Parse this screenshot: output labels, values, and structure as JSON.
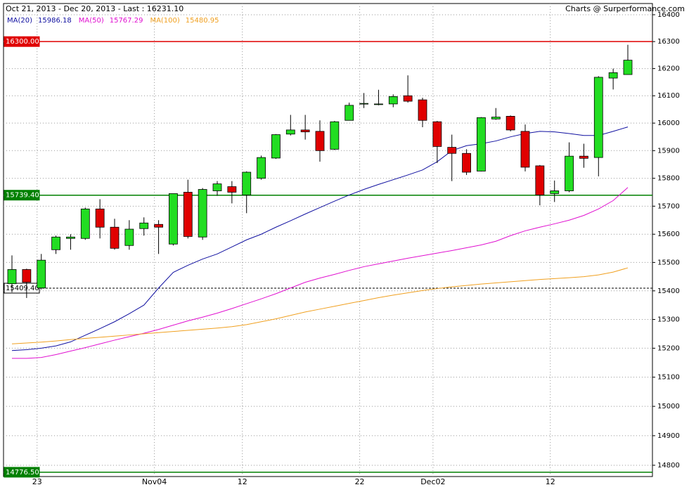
{
  "chart_data": {
    "type": "candlestick",
    "title": "Oct 21, 2013 - Dec 20, 2013 - Last : 16231.10",
    "source": "Charts @ Surperformance.com",
    "log": true,
    "ylim": [
      14762,
      16442
    ],
    "yticks": [
      14800,
      14900,
      15000,
      15100,
      15200,
      15300,
      15400,
      15500,
      15600,
      15700,
      15800,
      15900,
      16000,
      16100,
      16200,
      16300,
      16400
    ],
    "grid": true,
    "up_color": "#22dd22",
    "down_color": "#e00000",
    "categories": [
      null,
      null,
      "23",
      null,
      null,
      null,
      null,
      null,
      null,
      null,
      "Nov04",
      null,
      null,
      null,
      null,
      null,
      "12",
      null,
      null,
      null,
      null,
      null,
      null,
      null,
      "22",
      null,
      null,
      null,
      null,
      "Dec02",
      null,
      null,
      null,
      null,
      null,
      null,
      null,
      "12",
      null,
      null,
      null,
      null,
      null
    ],
    "open": [
      15425,
      15475,
      15410,
      15545,
      15585,
      15585,
      15690,
      15625,
      15560,
      15620,
      15635,
      15565,
      15750,
      15590,
      15755,
      15770,
      15740,
      15800,
      15873,
      15960,
      15975,
      15970,
      15905,
      16010,
      16070,
      16070,
      16070,
      16100,
      16085,
      16005,
      15912,
      15890,
      15826,
      16015,
      16025,
      15970,
      15845,
      15745,
      15755,
      15880,
      15875,
      16165,
      16178
    ],
    "high": [
      15525,
      15478,
      15530,
      15595,
      15600,
      15695,
      15725,
      15655,
      15650,
      15660,
      15650,
      15745,
      15795,
      15765,
      15790,
      15790,
      15825,
      15882,
      15960,
      16030,
      16030,
      16010,
      16008,
      16075,
      16110,
      16122,
      16105,
      16175,
      16093,
      16008,
      15958,
      15905,
      16022,
      16055,
      16028,
      15995,
      15848,
      15792,
      15930,
      15925,
      16172,
      16200,
      16288
    ],
    "low": [
      15395,
      15375,
      15405,
      15530,
      15545,
      15580,
      15585,
      15545,
      15545,
      15595,
      15530,
      15560,
      15585,
      15580,
      15737,
      15710,
      15675,
      15795,
      15870,
      15955,
      15940,
      15860,
      15902,
      16010,
      16055,
      16065,
      16058,
      16075,
      15985,
      15855,
      15790,
      15812,
      15825,
      16012,
      15970,
      15825,
      15703,
      15715,
      15750,
      15838,
      15807,
      16123,
      16178
    ],
    "close": [
      15475,
      15430,
      15508,
      15590,
      15590,
      15690,
      15625,
      15550,
      15618,
      15640,
      15625,
      15745,
      15592,
      15760,
      15780,
      15750,
      15822,
      15875,
      15958,
      15975,
      15968,
      15900,
      16005,
      16065,
      16072,
      16070,
      16097,
      16080,
      16010,
      15915,
      15890,
      15822,
      16020,
      16022,
      15975,
      15840,
      15740,
      15755,
      15880,
      15872,
      16168,
      16185,
      16231.1
    ],
    "series": [
      {
        "name": "MA(20)",
        "color": "#1010a0",
        "last": 15986.18,
        "values": [
          15192,
          15195,
          15200,
          15208,
          15222,
          15245,
          15268,
          15292,
          15320,
          15350,
          15410,
          15465,
          15490,
          15512,
          15530,
          15555,
          15580,
          15600,
          15625,
          15648,
          15672,
          15695,
          15718,
          15740,
          15760,
          15778,
          15795,
          15812,
          15830,
          15860,
          15900,
          15918,
          15925,
          15935,
          15950,
          15962,
          15970,
          15968,
          15962,
          15955,
          15955,
          15970,
          15986
        ]
      },
      {
        "name": "MA(50)",
        "color": "#e010d0",
        "last": 15767.29,
        "values": [
          15165,
          15165,
          15168,
          15178,
          15190,
          15202,
          15215,
          15228,
          15240,
          15252,
          15265,
          15280,
          15295,
          15308,
          15322,
          15338,
          15355,
          15372,
          15390,
          15410,
          15430,
          15445,
          15458,
          15472,
          15485,
          15495,
          15505,
          15515,
          15524,
          15533,
          15542,
          15552,
          15562,
          15575,
          15595,
          15612,
          15625,
          15637,
          15650,
          15667,
          15690,
          15720,
          15767
        ]
      },
      {
        "name": "MA(100)",
        "color": "#f0a020",
        "last": 15480.95,
        "values": [
          15215,
          15218,
          15221,
          15225,
          15230,
          15234,
          15238,
          15242,
          15246,
          15250,
          15254,
          15258,
          15262,
          15266,
          15270,
          15275,
          15282,
          15292,
          15302,
          15314,
          15326,
          15336,
          15346,
          15356,
          15366,
          15376,
          15385,
          15393,
          15401,
          15408,
          15414,
          15419,
          15424,
          15428,
          15432,
          15436,
          15440,
          15443,
          15446,
          15450,
          15456,
          15466,
          15481
        ]
      }
    ],
    "hlines": [
      {
        "value": 16300,
        "label": "16300.00",
        "color": "#e00000",
        "dashed": false
      },
      {
        "value": 15739.4,
        "label": "15739.40",
        "color": "#008000",
        "dashed": false
      },
      {
        "value": 15409.4,
        "label": "15409.40",
        "color": "#000000",
        "dashed": true
      },
      {
        "value": 14776.5,
        "label": "14776.50",
        "color": "#008000",
        "dashed": false
      }
    ]
  }
}
